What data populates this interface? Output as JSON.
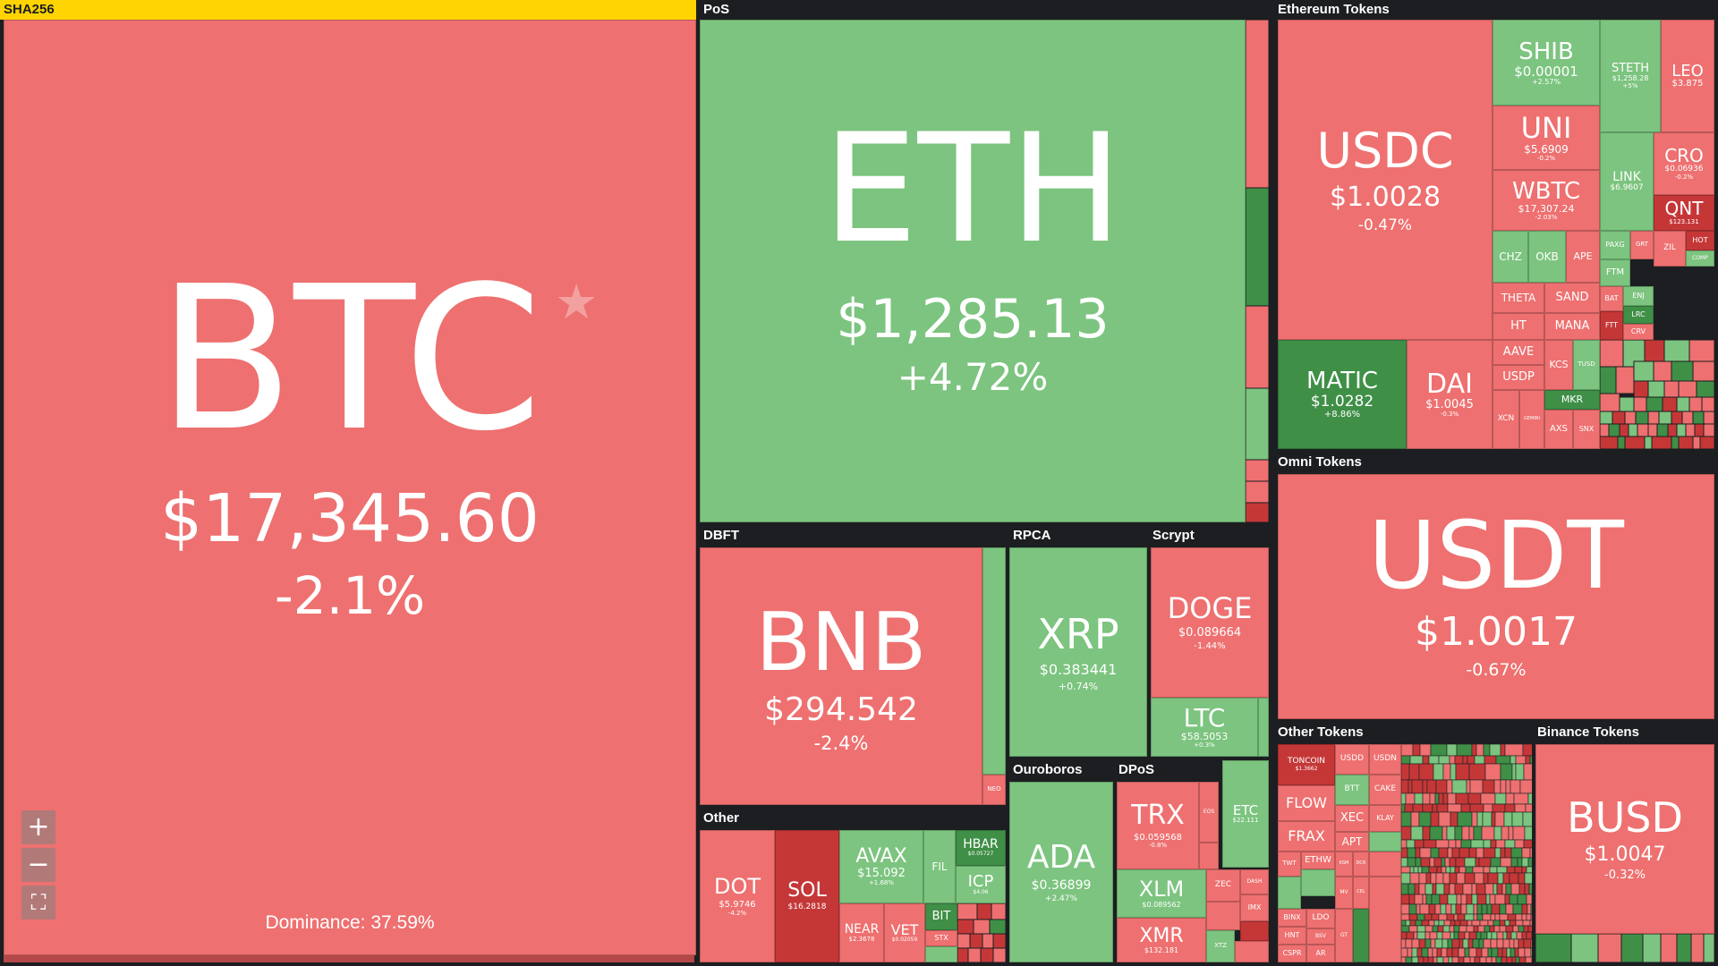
{
  "groups": {
    "sha256": "SHA256",
    "pos": "PoS",
    "ethereum_tokens": "Ethereum Tokens",
    "omni_tokens": "Omni Tokens",
    "dbft": "DBFT",
    "rpca": "RPCA",
    "scrypt": "Scrypt",
    "other": "Other",
    "ouroboros": "Ouroboros",
    "dpos": "DPoS",
    "other_tokens": "Other Tokens",
    "binance_tokens": "Binance Tokens"
  },
  "colors": {
    "down": "#ee7070",
    "up": "#7cc47f",
    "strong_down": "#c53737",
    "strong_up": "#3f8f47",
    "background": "#1c1e21",
    "sha256_header": "#ffd400"
  },
  "tiles": {
    "btc": {
      "symbol": "BTC",
      "price": "$17,345.60",
      "change": "-2.1%"
    },
    "eth": {
      "symbol": "ETH",
      "price": "$1,285.13",
      "change": "+4.72%"
    },
    "usdc": {
      "symbol": "USDC",
      "price": "$1.0028",
      "change": "-0.47%"
    },
    "shib": {
      "symbol": "SHIB",
      "price": "$0.00001",
      "change": "+2.57%"
    },
    "steth": {
      "symbol": "STETH",
      "price": "$1,258.28",
      "change": "+5%"
    },
    "leo": {
      "symbol": "LEO",
      "price": "$3.875",
      "change": ""
    },
    "uni": {
      "symbol": "UNI",
      "price": "$5.6909",
      "change": "-0.2%"
    },
    "link": {
      "symbol": "LINK",
      "price": "$6.9607",
      "change": ""
    },
    "cro": {
      "symbol": "CRO",
      "price": "$0.06936",
      "change": "-0.2%"
    },
    "wbtc": {
      "symbol": "WBTC",
      "price": "$17,307.24",
      "change": "-2.03%"
    },
    "qnt": {
      "symbol": "QNT",
      "price": "$123.131",
      "change": ""
    },
    "matic": {
      "symbol": "MATIC",
      "price": "$1.0282",
      "change": "+8.86%"
    },
    "dai": {
      "symbol": "DAI",
      "price": "$1.0045",
      "change": "-0.3%"
    },
    "usdt": {
      "symbol": "USDT",
      "price": "$1.0017",
      "change": "-0.67%"
    },
    "bnb": {
      "symbol": "BNB",
      "price": "$294.542",
      "change": "-2.4%"
    },
    "xrp": {
      "symbol": "XRP",
      "price": "$0.383441",
      "change": "+0.74%"
    },
    "doge": {
      "symbol": "DOGE",
      "price": "$0.089664",
      "change": "-1.44%"
    },
    "ltc": {
      "symbol": "LTC",
      "price": "$58.5053",
      "change": "+0.3%"
    },
    "ada": {
      "symbol": "ADA",
      "price": "$0.36899",
      "change": "+2.47%"
    },
    "trx": {
      "symbol": "TRX",
      "price": "$0.059568",
      "change": "-0.8%"
    },
    "etc": {
      "symbol": "ETC",
      "price": "$22.111",
      "change": ""
    },
    "xlm": {
      "symbol": "XLM",
      "price": "$0.089562",
      "change": ""
    },
    "xmr": {
      "symbol": "XMR",
      "price": "$132.181",
      "change": ""
    },
    "dot": {
      "symbol": "DOT",
      "price": "$5.9746",
      "change": "-4.2%"
    },
    "sol": {
      "symbol": "SOL",
      "price": "$16.2818",
      "change": ""
    },
    "avax": {
      "symbol": "AVAX",
      "price": "$15.092",
      "change": "+1.68%"
    },
    "hbar": {
      "symbol": "HBAR",
      "price": "$0.05727",
      "change": ""
    },
    "icp": {
      "symbol": "ICP",
      "price": "$4.06",
      "change": ""
    },
    "near": {
      "symbol": "NEAR",
      "price": "$2.3678",
      "change": ""
    },
    "vet": {
      "symbol": "VET",
      "price": "$0.02059",
      "change": ""
    },
    "busd": {
      "symbol": "BUSD",
      "price": "$1.0047",
      "change": "-0.32%"
    }
  },
  "small_labels": {
    "chz": "CHZ",
    "okb": "OKB",
    "ape": "APE",
    "theta": "THETA",
    "sand": "SAND",
    "ht": "HT",
    "mana": "MANA",
    "aave": "AAVE",
    "usdp": "USDP",
    "mkr": "MKR",
    "xcn": "XCN",
    "axs": "AXS",
    "kcs": "KCS",
    "tusd": "TUSD",
    "ftm": "FTM",
    "bat": "BAT",
    "ftt": "FTT",
    "crv": "CRV",
    "lrc": "LRC",
    "zil": "ZIL",
    "hot": "HOT",
    "fil": "FIL",
    "bit": "BIT",
    "stx": "STX",
    "xtz": "XTZ",
    "neo": "NEO",
    "eos": "EOS",
    "zec": "ZEC",
    "imx": "IMX",
    "toncoin": "TONCOIN",
    "toncoin_price": "$1.3662",
    "flow": "FLOW",
    "frax": "FRAX",
    "apt": "APT",
    "xec": "XEC",
    "ethw": "ETHW",
    "btt": "BTT",
    "cake": "CAKE",
    "klay": "KLAY",
    "usdd": "USDD",
    "usdn": "USDN",
    "ldo": "LDO",
    "binx": "BINX",
    "hnt": "HNT",
    "cspr": "CSPR",
    "ar": "AR",
    "twt": "TWT",
    "mv": "MV",
    "dcr": "DCR",
    "ksm": "KSM",
    "gemini": "GEMINI",
    "gt": "GT",
    "dash": "DASH",
    "enj": "ENJ",
    "comp": "COMP",
    "bsv": "BSV",
    "cel": "CEL",
    "snx": "SNX",
    "grt": "GRT",
    "paxg": "PAXG"
  },
  "controls": {
    "zoom_in": "+",
    "zoom_out": "−",
    "fit": "⛶"
  },
  "dominance": "Dominance: 37.59%"
}
